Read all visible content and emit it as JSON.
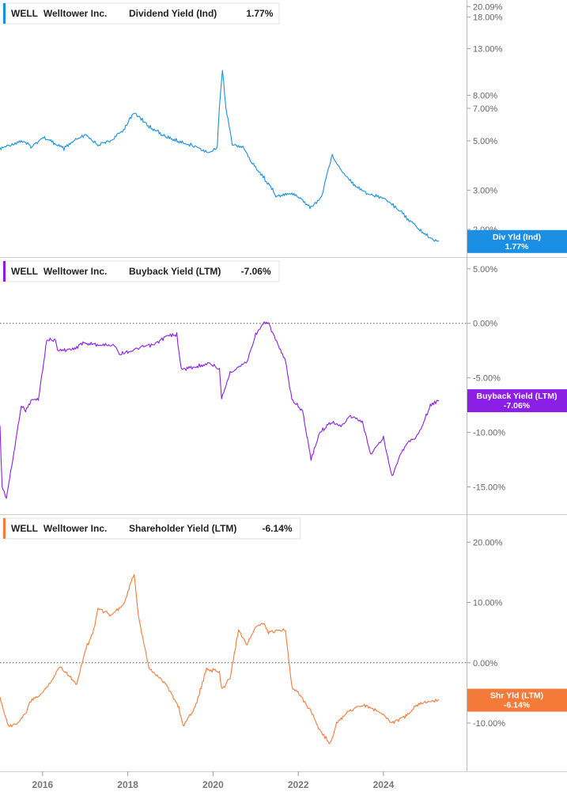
{
  "chart_data": [
    {
      "type": "line",
      "scale": "log",
      "ticker": "WELL",
      "company": "Welltower Inc.",
      "metric": "Dividend Yield (Ind)",
      "current_value_label": "1.77%",
      "badge_line1": "Div Yld (Ind)",
      "badge_line2": "1.77%",
      "color": "#1a8fe3",
      "ylim": [
        1.5,
        21.5
      ],
      "y_ticks": [
        {
          "value": 20.09,
          "label": "20.09%"
        },
        {
          "value": 18.0,
          "label": "18.00%"
        },
        {
          "value": 13.0,
          "label": "13.00%"
        },
        {
          "value": 8.0,
          "label": "8.00%"
        },
        {
          "value": 7.0,
          "label": "7.00%"
        },
        {
          "value": 5.0,
          "label": "5.00%"
        },
        {
          "value": 3.0,
          "label": "3.00%"
        },
        {
          "value": 2.0,
          "label": "2.00%"
        }
      ],
      "x": [
        2015.0,
        2015.5,
        2015.75,
        2016.0,
        2016.5,
        2016.75,
        2017.0,
        2017.3,
        2017.6,
        2017.9,
        2018.15,
        2018.5,
        2018.9,
        2019.3,
        2019.6,
        2019.9,
        2020.1,
        2020.22,
        2020.3,
        2020.45,
        2020.7,
        2020.9,
        2021.2,
        2021.5,
        2021.8,
        2022.0,
        2022.3,
        2022.55,
        2022.8,
        2023.0,
        2023.3,
        2023.6,
        2023.9,
        2024.1,
        2024.3,
        2024.6,
        2024.9,
        2025.15,
        2025.3
      ],
      "values": [
        4.6,
        5.0,
        4.7,
        5.2,
        4.6,
        5.0,
        5.3,
        4.8,
        5.0,
        5.6,
        6.7,
        5.8,
        5.2,
        4.9,
        4.7,
        4.4,
        4.7,
        10.4,
        7.0,
        4.8,
        4.7,
        4.0,
        3.4,
        2.8,
        2.9,
        2.8,
        2.5,
        2.8,
        4.3,
        3.7,
        3.2,
        2.9,
        2.8,
        2.7,
        2.5,
        2.2,
        1.95,
        1.8,
        1.77
      ]
    },
    {
      "type": "line",
      "scale": "linear",
      "ticker": "WELL",
      "company": "Welltower Inc.",
      "metric": "Buyback Yield (LTM)",
      "current_value_label": "-7.06%",
      "badge_line1": "Buyback Yield (LTM)",
      "badge_line2": "-7.06%",
      "color": "#8b1fe6",
      "ylim": [
        -17.5,
        6.0
      ],
      "y_ticks": [
        {
          "value": 5.0,
          "label": "5.00%"
        },
        {
          "value": 0.0,
          "label": "0.00%"
        },
        {
          "value": -5.0,
          "label": "-5.00%"
        },
        {
          "value": -10.0,
          "label": "-10.00%"
        },
        {
          "value": -15.0,
          "label": "-15.00%"
        }
      ],
      "zero_line": 0,
      "x": [
        2015.0,
        2015.05,
        2015.15,
        2015.3,
        2015.4,
        2015.5,
        2015.6,
        2015.75,
        2015.9,
        2016.1,
        2016.3,
        2016.35,
        2016.8,
        2016.9,
        2017.4,
        2017.7,
        2017.8,
        2018.1,
        2018.4,
        2018.6,
        2018.9,
        2019.15,
        2019.25,
        2019.6,
        2019.9,
        2020.15,
        2020.2,
        2020.4,
        2020.6,
        2020.8,
        2021.0,
        2021.2,
        2021.3,
        2021.7,
        2021.85,
        2022.1,
        2022.3,
        2022.5,
        2022.8,
        2023.0,
        2023.2,
        2023.5,
        2023.7,
        2024.0,
        2024.2,
        2024.4,
        2024.55,
        2024.75,
        2024.9,
        2025.1,
        2025.3
      ],
      "values": [
        -9.5,
        -15.0,
        -16.0,
        -12.5,
        -10.0,
        -7.5,
        -8.0,
        -7.0,
        -7.0,
        -1.5,
        -1.5,
        -2.5,
        -2.3,
        -1.8,
        -2.0,
        -2.0,
        -2.8,
        -2.5,
        -2.1,
        -2.0,
        -1.2,
        -1.0,
        -4.2,
        -4.0,
        -3.6,
        -4.2,
        -7.0,
        -4.5,
        -4.0,
        -3.5,
        -1.0,
        0.0,
        0.0,
        -3.5,
        -7.0,
        -8.0,
        -12.5,
        -10.0,
        -9.0,
        -9.5,
        -8.5,
        -9.0,
        -12.0,
        -10.5,
        -14.0,
        -12.0,
        -11.0,
        -10.5,
        -9.5,
        -7.5,
        -7.06
      ]
    },
    {
      "type": "line",
      "scale": "linear",
      "ticker": "WELL",
      "company": "Welltower Inc.",
      "metric": "Shareholder Yield (LTM)",
      "current_value_label": "-6.14%",
      "badge_line1": "Shr Yld (LTM)",
      "badge_line2": "-6.14%",
      "color": "#f47a3a",
      "ylim": [
        -18.0,
        24.5
      ],
      "y_ticks": [
        {
          "value": 20.0,
          "label": "20.00%"
        },
        {
          "value": 10.0,
          "label": "10.00%"
        },
        {
          "value": 0.0,
          "label": "0.00%"
        },
        {
          "value": -10.0,
          "label": "-10.00%"
        }
      ],
      "zero_line": 0,
      "x": [
        2015.0,
        2015.2,
        2015.4,
        2015.6,
        2015.7,
        2016.0,
        2016.3,
        2016.4,
        2016.8,
        2017.0,
        2017.2,
        2017.3,
        2017.6,
        2017.9,
        2018.1,
        2018.15,
        2018.25,
        2018.5,
        2018.9,
        2019.2,
        2019.3,
        2019.6,
        2019.85,
        2020.15,
        2020.2,
        2020.4,
        2020.6,
        2020.8,
        2021.0,
        2021.2,
        2021.3,
        2021.7,
        2021.85,
        2022.0,
        2022.3,
        2022.5,
        2022.75,
        2022.9,
        2023.2,
        2023.5,
        2023.7,
        2024.0,
        2024.2,
        2024.5,
        2024.8,
        2025.0,
        2025.3
      ],
      "values": [
        -6.0,
        -10.5,
        -10.0,
        -8.5,
        -6.5,
        -5.0,
        -2.0,
        -0.5,
        -3.5,
        2.0,
        5.5,
        9.0,
        8.0,
        9.5,
        14.0,
        14.5,
        7.5,
        -1.0,
        -3.5,
        -7.5,
        -10.5,
        -7.0,
        -1.0,
        -1.5,
        -4.5,
        -2.5,
        5.5,
        3.0,
        6.0,
        6.5,
        5.0,
        5.5,
        -4.0,
        -5.0,
        -8.0,
        -11.0,
        -13.5,
        -10.0,
        -8.0,
        -7.0,
        -7.5,
        -8.5,
        -10.0,
        -9.0,
        -7.0,
        -6.5,
        -6.14
      ]
    }
  ],
  "x_axis": {
    "domain": [
      2015.0,
      2025.95
    ],
    "ticks": [
      {
        "value": 2016,
        "label": "2016"
      },
      {
        "value": 2018,
        "label": "2018"
      },
      {
        "value": 2020,
        "label": "2020"
      },
      {
        "value": 2022,
        "label": "2022"
      },
      {
        "value": 2024,
        "label": "2024"
      }
    ]
  }
}
